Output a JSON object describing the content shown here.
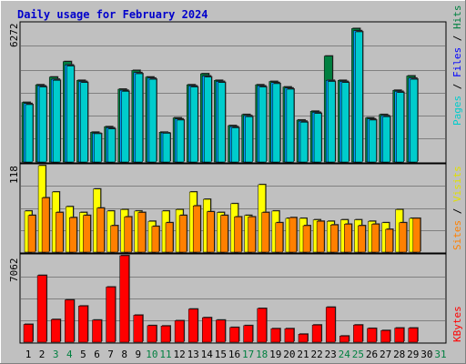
{
  "title": "Daily usage for February 2024",
  "colors": {
    "title": "#0000cc",
    "hits": "#00cccc",
    "hits_side": "#008040",
    "files": "#00a0ff",
    "pages": "#00cccc",
    "visits": "#ffff00",
    "sites": "#ff8000",
    "kbytes": "#ff0000",
    "weekday_label": "#000000",
    "weekend_label": "#008040",
    "panel_bg": "#c0c0c0",
    "plot_bg": "#ffffff"
  },
  "labels": {
    "hits_max": "6272",
    "visits_max": "118",
    "kbytes_max": "7062",
    "hits": "Hits",
    "files": "Files",
    "pages": "Pages",
    "visits": "Visits",
    "sites": "Sites",
    "kbytes": "KBytes",
    "sep": " / "
  },
  "chart_data": [
    {
      "type": "bar",
      "title": "Daily usage for February 2024",
      "categories": [
        "1",
        "2",
        "3",
        "4",
        "5",
        "6",
        "7",
        "8",
        "9",
        "10",
        "11",
        "12",
        "13",
        "14",
        "15",
        "16",
        "17",
        "18",
        "19",
        "20",
        "21",
        "22",
        "23",
        "24",
        "25",
        "26",
        "27",
        "28",
        "29",
        "30",
        "31"
      ],
      "weekend_days": [
        "3",
        "4",
        "10",
        "11",
        "17",
        "18",
        "24",
        "25",
        "31"
      ],
      "ylim": [
        0,
        6272
      ],
      "series": [
        {
          "name": "Hits",
          "values": [
            2700,
            3500,
            3850,
            4550,
            3700,
            1350,
            1600,
            3300,
            4150,
            3850,
            1350,
            2000,
            3500,
            4000,
            3700,
            1650,
            2150,
            3500,
            3650,
            3400,
            1900,
            2300,
            4800,
            3700,
            6050,
            2000,
            2150,
            3250,
            3900,
            null,
            null
          ]
        },
        {
          "name": "Files",
          "values": [
            2650,
            3450,
            3750,
            4400,
            3650,
            1300,
            1550,
            3250,
            4050,
            3800,
            1320,
            1950,
            3450,
            3900,
            3650,
            1600,
            2100,
            3450,
            3600,
            3350,
            1850,
            2250,
            3700,
            3650,
            5950,
            1950,
            2100,
            3200,
            3800,
            null,
            null
          ]
        },
        {
          "name": "Pages",
          "values": [
            2600,
            3400,
            3700,
            4350,
            3600,
            1280,
            1500,
            3200,
            4000,
            3750,
            1300,
            1900,
            3400,
            3850,
            3600,
            1550,
            2050,
            3400,
            3550,
            3300,
            1800,
            2200,
            3650,
            3600,
            5900,
            1900,
            2050,
            3150,
            3750,
            null,
            null
          ]
        }
      ]
    },
    {
      "type": "bar",
      "categories": [
        "1",
        "2",
        "3",
        "4",
        "5",
        "6",
        "7",
        "8",
        "9",
        "10",
        "11",
        "12",
        "13",
        "14",
        "15",
        "16",
        "17",
        "18",
        "19",
        "20",
        "21",
        "22",
        "23",
        "24",
        "25",
        "26",
        "27",
        "28",
        "29",
        "30",
        "31"
      ],
      "ylim": [
        0,
        118
      ],
      "series": [
        {
          "name": "Visits",
          "values": [
            56,
            118,
            82,
            62,
            54,
            86,
            56,
            58,
            56,
            42,
            56,
            58,
            82,
            72,
            54,
            66,
            50,
            92,
            56,
            46,
            46,
            44,
            42,
            44,
            44,
            42,
            40,
            58,
            46,
            null,
            null
          ]
        },
        {
          "name": "Sites",
          "values": [
            50,
            74,
            54,
            47,
            50,
            60,
            36,
            48,
            54,
            35,
            40,
            50,
            63,
            55,
            50,
            48,
            48,
            54,
            40,
            47,
            36,
            42,
            37,
            38,
            36,
            38,
            31,
            40,
            46,
            null,
            null
          ]
        }
      ]
    },
    {
      "type": "bar",
      "categories": [
        "1",
        "2",
        "3",
        "4",
        "5",
        "6",
        "7",
        "8",
        "9",
        "10",
        "11",
        "12",
        "13",
        "14",
        "15",
        "16",
        "17",
        "18",
        "19",
        "20",
        "21",
        "22",
        "23",
        "24",
        "25",
        "26",
        "27",
        "28",
        "29",
        "30",
        "31"
      ],
      "ylim": [
        0,
        7062
      ],
      "series": [
        {
          "name": "KBytes",
          "values": [
            1450,
            5450,
            1850,
            3450,
            2950,
            1800,
            4500,
            7062,
            2200,
            1350,
            1320,
            1750,
            2700,
            2000,
            1800,
            1200,
            1350,
            2750,
            1100,
            1100,
            650,
            1400,
            2850,
            500,
            1400,
            1120,
            950,
            1150,
            1150,
            null,
            null
          ]
        }
      ]
    }
  ]
}
